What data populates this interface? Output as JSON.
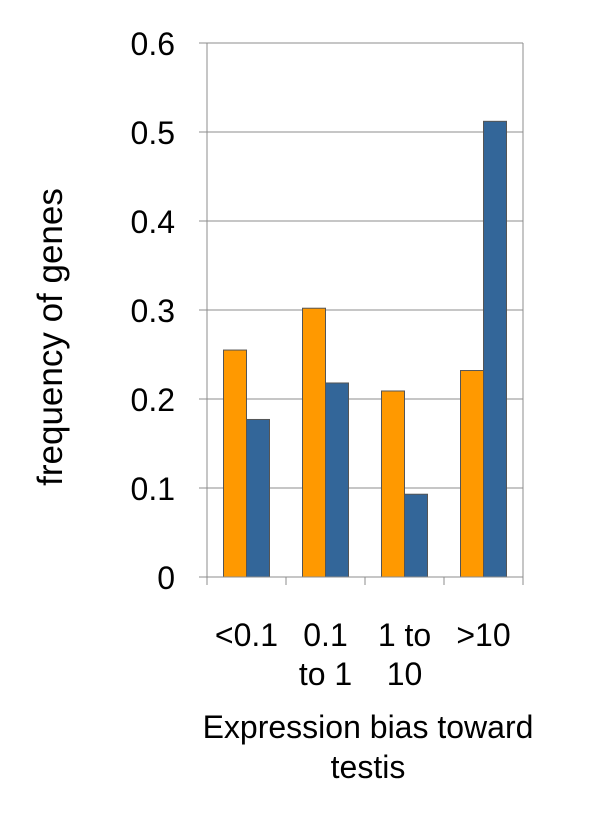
{
  "chart_data": {
    "type": "bar",
    "xlabel": "Expression bias toward testis",
    "ylabel": "frequency of genes",
    "categories": [
      "<0.1 ",
      "0.1 to 1",
      "1 to 10",
      ">10"
    ],
    "category_label_lines": [
      [
        "<0.1"
      ],
      [
        "0.1",
        "to 1"
      ],
      [
        "1 to",
        "10"
      ],
      [
        ">10"
      ]
    ],
    "ylim": [
      0,
      0.6
    ],
    "yticks": [
      "0",
      "0.1",
      "0.2",
      "0.3",
      "0.4",
      "0.5",
      "0.6"
    ],
    "grid": true,
    "legend": "none",
    "series": [
      {
        "values": [
          0.255,
          0.302,
          0.209,
          0.232
        ],
        "color": "#FF9900"
      },
      {
        "values": [
          0.177,
          0.218,
          0.093,
          0.512
        ],
        "color": "#336699"
      }
    ]
  }
}
